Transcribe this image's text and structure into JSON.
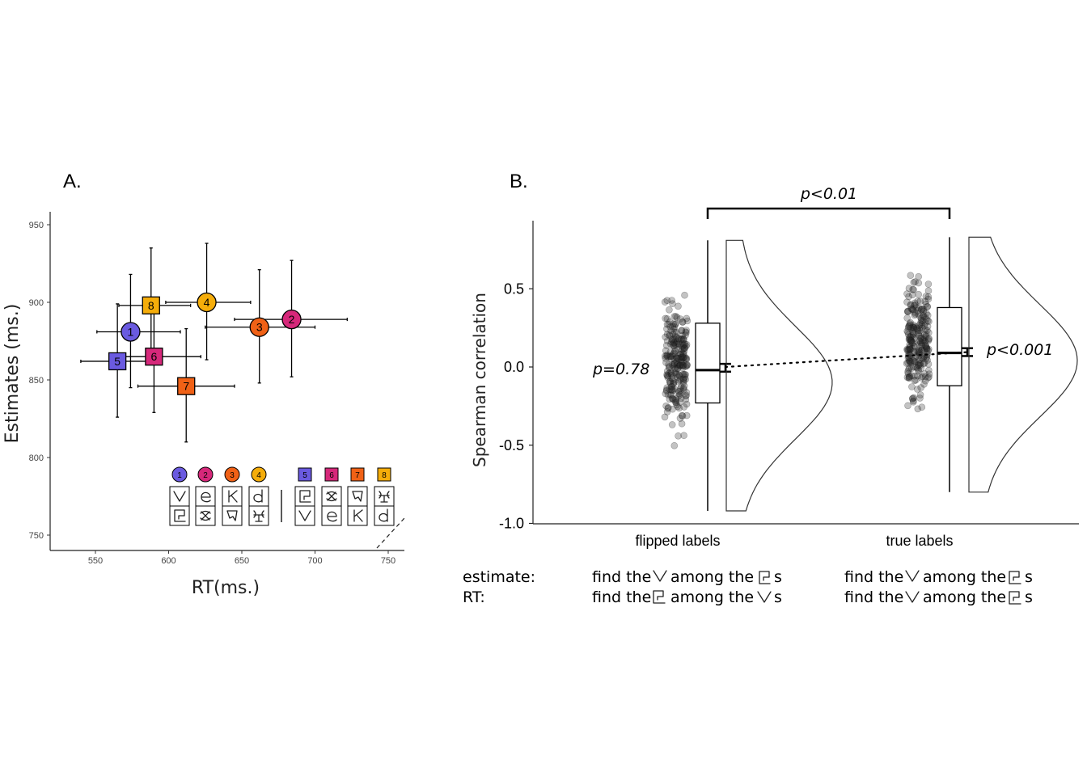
{
  "chart_data": [
    {
      "panel": "A.",
      "type": "scatter",
      "xlabel": "RT(ms.)",
      "ylabel": "Estimates (ms.)",
      "xlim": [
        520,
        760
      ],
      "ylim": [
        740,
        960
      ],
      "xticks": [
        "550",
        "600",
        "650",
        "700",
        "750"
      ],
      "yticks": [
        "750",
        "800",
        "850",
        "900",
        "950"
      ],
      "points": [
        {
          "label": "1",
          "shape": "circle",
          "color": "#6a5ae0",
          "x": 574,
          "y": 881,
          "xerr": [
            551,
            608
          ],
          "yerr": [
            845,
            918
          ]
        },
        {
          "label": "2",
          "shape": "circle",
          "color": "#d6287a",
          "x": 684,
          "y": 889,
          "xerr": [
            645,
            722
          ],
          "yerr": [
            852,
            927
          ]
        },
        {
          "label": "3",
          "shape": "circle",
          "color": "#f06116",
          "x": 662,
          "y": 884,
          "xerr": [
            625,
            700
          ],
          "yerr": [
            848,
            921
          ]
        },
        {
          "label": "4",
          "shape": "circle",
          "color": "#f5ad0a",
          "x": 626,
          "y": 900,
          "xerr": [
            598,
            656
          ],
          "yerr": [
            863,
            938
          ]
        },
        {
          "label": "5",
          "shape": "square",
          "color": "#6a5ae0",
          "x": 565,
          "y": 862,
          "xerr": [
            540,
            592
          ],
          "yerr": [
            826,
            899
          ]
        },
        {
          "label": "6",
          "shape": "square",
          "color": "#d6287a",
          "x": 590,
          "y": 865,
          "xerr": [
            562,
            622
          ],
          "yerr": [
            829,
            901
          ]
        },
        {
          "label": "7",
          "shape": "square",
          "color": "#f06116",
          "x": 612,
          "y": 846,
          "xerr": [
            579,
            645
          ],
          "yerr": [
            810,
            883
          ]
        },
        {
          "label": "8",
          "shape": "square",
          "color": "#f5ad0a",
          "x": 588,
          "y": 898,
          "xerr": [
            566,
            615
          ],
          "yerr": [
            862,
            935
          ]
        }
      ],
      "identity_line": true
    },
    {
      "panel": "B.",
      "type": "raincloud",
      "ylabel": "Spearman correlation",
      "ylim": [
        -1.0,
        0.9
      ],
      "yticks": [
        "0.5",
        "0.0",
        "-0.5",
        "-1.0"
      ],
      "categories": [
        "flipped labels",
        "true labels"
      ],
      "groups": [
        {
          "name": "flipped labels",
          "median": -0.02,
          "q1": -0.23,
          "q3": 0.28,
          "min": -0.92,
          "max": 0.81,
          "mean": 0.0,
          "ci": [
            -0.03,
            0.02
          ],
          "pvalue": "p=0.78"
        },
        {
          "name": "true labels",
          "median": 0.09,
          "q1": -0.12,
          "q3": 0.38,
          "min": -0.8,
          "max": 0.83,
          "mean": 0.095,
          "ci": [
            0.07,
            0.12
          ],
          "pvalue": "p<0.001"
        }
      ],
      "comparison": "p<0.01"
    }
  ],
  "tasks": {
    "estimate_label": "estimate:",
    "rt_label": "RT:",
    "find_the": "find the",
    "among_the": "among the",
    "s": "s"
  }
}
